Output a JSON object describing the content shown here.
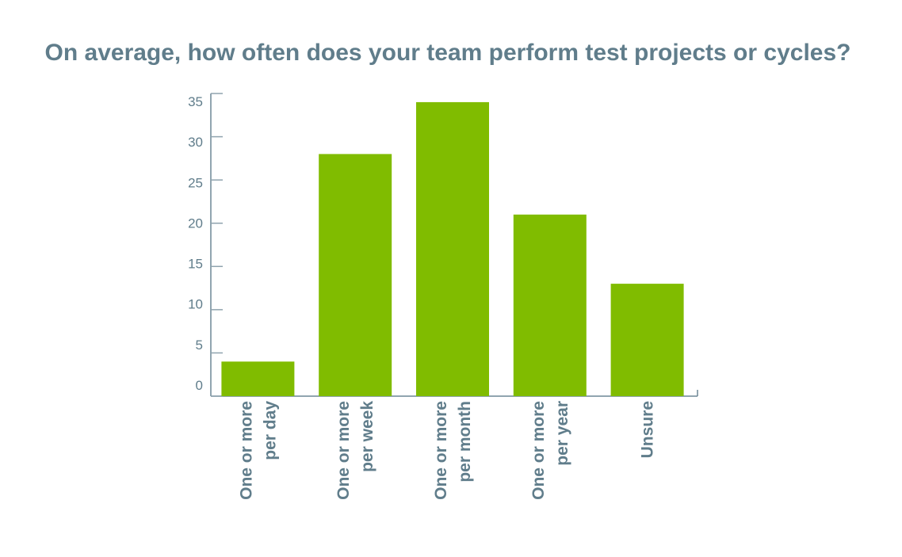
{
  "chart_data": {
    "type": "bar",
    "title": "On average, how often does your team perform test projects or cycles?",
    "categories": [
      [
        "One or more",
        "per day"
      ],
      [
        "One or more",
        "per week"
      ],
      [
        "One or more",
        "per month"
      ],
      [
        "One or more",
        "per year"
      ],
      [
        "Unsure"
      ]
    ],
    "values": [
      4,
      28,
      34,
      21,
      13
    ],
    "ylim": [
      0,
      35
    ],
    "yticks": [
      "0",
      "5",
      "10",
      "15",
      "20",
      "25",
      "30",
      "35"
    ],
    "xlabel": "",
    "ylabel": "",
    "grid": false,
    "colors": {
      "bar": "#80bc00",
      "text": "#607d8b",
      "axis": "#6d8796"
    }
  }
}
